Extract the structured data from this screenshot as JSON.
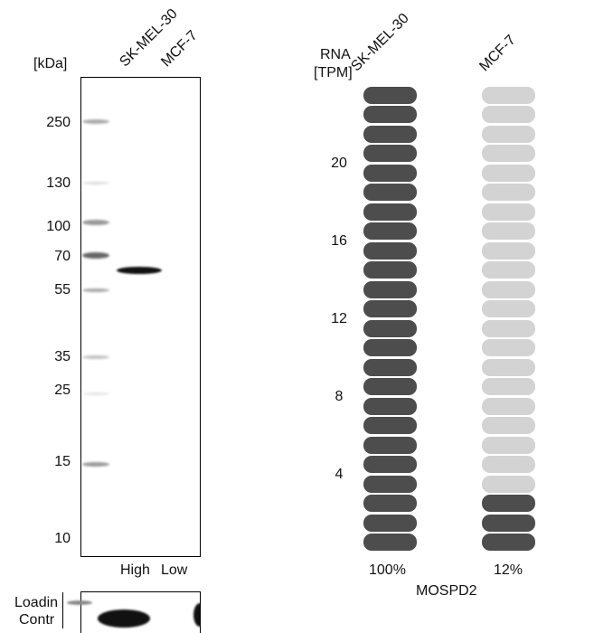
{
  "western_blot": {
    "unit_label": "[kDa]",
    "lanes": [
      "SK-MEL-30",
      "MCF-7"
    ],
    "markers": [
      "250",
      "130",
      "100",
      "70",
      "55",
      "35",
      "25",
      "15",
      "10"
    ],
    "lane_levels": [
      "High",
      "Low"
    ],
    "loading_control_label_1": "Loadin",
    "loading_control_label_2": "Contr"
  },
  "chart_data": {
    "type": "bar",
    "title": "MOSPD2",
    "ylabel": "RNA [TPM]",
    "ylabel_line1": "RNA",
    "ylabel_line2": "[TPM]",
    "categories": [
      "SK-MEL-30",
      "MCF-7"
    ],
    "yticks": [
      "4",
      "8",
      "12",
      "16",
      "20"
    ],
    "ylim": [
      0,
      24
    ],
    "segments_total": 24,
    "segments_filled": [
      24,
      3
    ],
    "percent_labels": [
      "100%",
      "12%"
    ],
    "colors": {
      "filled": "#4d4d4d",
      "empty": "#d3d3d3"
    }
  }
}
